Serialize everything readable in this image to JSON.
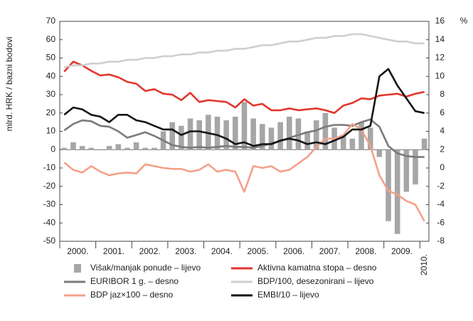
{
  "chart_data": {
    "type": "bar-line",
    "y_label": "mlrd. HRK / bazni bodovi",
    "y2_label": "%",
    "year_labels": [
      "2000.",
      "2001.",
      "2002.",
      "2003.",
      "2004.",
      "2005.",
      "2006.",
      "2007.",
      "2008.",
      "2009.",
      "2010."
    ],
    "x": [
      2000.125,
      2000.375,
      2000.625,
      2000.875,
      2001.125,
      2001.375,
      2001.625,
      2001.875,
      2002.125,
      2002.375,
      2002.625,
      2002.875,
      2003.125,
      2003.375,
      2003.625,
      2003.875,
      2004.125,
      2004.375,
      2004.625,
      2004.875,
      2005.125,
      2005.375,
      2005.625,
      2005.875,
      2006.125,
      2006.375,
      2006.625,
      2006.875,
      2007.125,
      2007.375,
      2007.625,
      2007.875,
      2008.125,
      2008.375,
      2008.625,
      2008.875,
      2009.125,
      2009.375,
      2009.625,
      2009.875,
      2010.125
    ],
    "xlim": [
      2000,
      2010.25
    ],
    "xticks": [
      2000,
      2001,
      2002,
      2003,
      2004,
      2005,
      2006,
      2007,
      2008,
      2009,
      2010
    ],
    "ylim": [
      -50,
      70
    ],
    "yticks": [
      -50,
      -40,
      -30,
      -20,
      -10,
      0,
      10,
      20,
      30,
      40,
      50,
      60,
      70
    ],
    "y2lim": [
      -8,
      16
    ],
    "y2ticks": [
      -8,
      -6,
      -4,
      -2,
      0,
      2,
      4,
      6,
      8,
      10,
      12,
      14,
      16
    ],
    "series": [
      {
        "name": "Višak/manjak ponude – lijevo",
        "kind": "bar",
        "color": "#a6a6a6",
        "values": [
          1,
          4,
          2,
          1,
          0,
          2,
          3,
          1,
          4,
          1,
          1,
          10,
          15,
          13,
          17,
          16,
          19,
          18,
          16,
          18,
          26,
          17,
          14,
          12,
          15,
          18,
          17,
          10,
          16,
          20,
          12,
          8,
          6,
          15,
          12,
          -4,
          -39,
          -46,
          -23,
          -19,
          6
        ]
      },
      {
        "name": "Aktivna kamatna stopa – desno",
        "kind": "line",
        "axis": "y2",
        "color": "#e2362c",
        "values": [
          10.5,
          11.6,
          11.2,
          10.6,
          10.1,
          10.2,
          9.9,
          9.4,
          9.2,
          8.4,
          8.6,
          8.1,
          8.0,
          7.4,
          8.2,
          7.2,
          7.4,
          7.3,
          7.2,
          6.6,
          7.5,
          6.8,
          7.0,
          6.3,
          6.3,
          6.5,
          6.3,
          6.4,
          6.5,
          6.3,
          6.0,
          6.8,
          7.1,
          7.6,
          7.5,
          7.9,
          8.0,
          8.1,
          7.8,
          8.1,
          8.3
        ]
      },
      {
        "name": "EURIBOR 1 g. – desno",
        "kind": "line",
        "axis": "y2",
        "color": "#7a7a7a",
        "values": [
          4.1,
          4.8,
          5.2,
          5.1,
          4.6,
          4.5,
          4.0,
          3.3,
          3.6,
          3.9,
          3.5,
          3.0,
          2.5,
          2.3,
          2.2,
          2.3,
          2.2,
          2.3,
          2.4,
          2.3,
          2.3,
          2.2,
          2.4,
          2.7,
          2.9,
          3.3,
          3.6,
          3.9,
          4.1,
          4.5,
          4.7,
          4.7,
          4.6,
          5.0,
          5.3,
          4.5,
          2.4,
          1.6,
          1.3,
          1.2,
          1.2
        ]
      },
      {
        "name": "BDP/100, desezonirani – lijevo",
        "kind": "line",
        "color": "#cfcfcf",
        "values": [
          45,
          46,
          46,
          47,
          47,
          48,
          48,
          49,
          49,
          50,
          50,
          51,
          51,
          52,
          52,
          53,
          53,
          54,
          54,
          55,
          55,
          56,
          57,
          57,
          58,
          59,
          59,
          60,
          61,
          61,
          62,
          62,
          63,
          63,
          62,
          61,
          60,
          59,
          59,
          58,
          58
        ]
      },
      {
        "name": "BDP jaz×100 – desno",
        "kind": "line",
        "axis": "y2",
        "color": "#f4a088",
        "values": [
          0.6,
          -0.2,
          -0.5,
          0.2,
          -0.4,
          -0.8,
          -0.6,
          -0.5,
          -0.6,
          0.4,
          0.2,
          0.0,
          -0.1,
          -0.1,
          -0.4,
          -0.2,
          0.4,
          -0.4,
          -0.2,
          -0.4,
          -2.6,
          0.2,
          0.0,
          0.2,
          -0.4,
          -0.2,
          0.5,
          1.2,
          2.3,
          3.2,
          3.2,
          3.6,
          4.8,
          4.2,
          2.4,
          -0.8,
          -2.5,
          -2.9,
          -3.6,
          -4.0,
          -5.8
        ]
      },
      {
        "name": "EMBI/10 – lijevo",
        "kind": "line",
        "color": "#151515",
        "values": [
          19,
          23,
          22,
          19,
          18,
          15,
          19,
          19,
          16,
          15,
          13,
          11,
          11,
          8,
          10,
          10,
          9,
          8,
          6,
          3,
          4,
          2,
          3,
          3,
          5,
          6,
          5,
          3,
          4,
          3,
          5,
          7,
          11,
          11,
          13,
          40,
          44,
          35,
          28,
          21,
          20
        ]
      }
    ]
  }
}
